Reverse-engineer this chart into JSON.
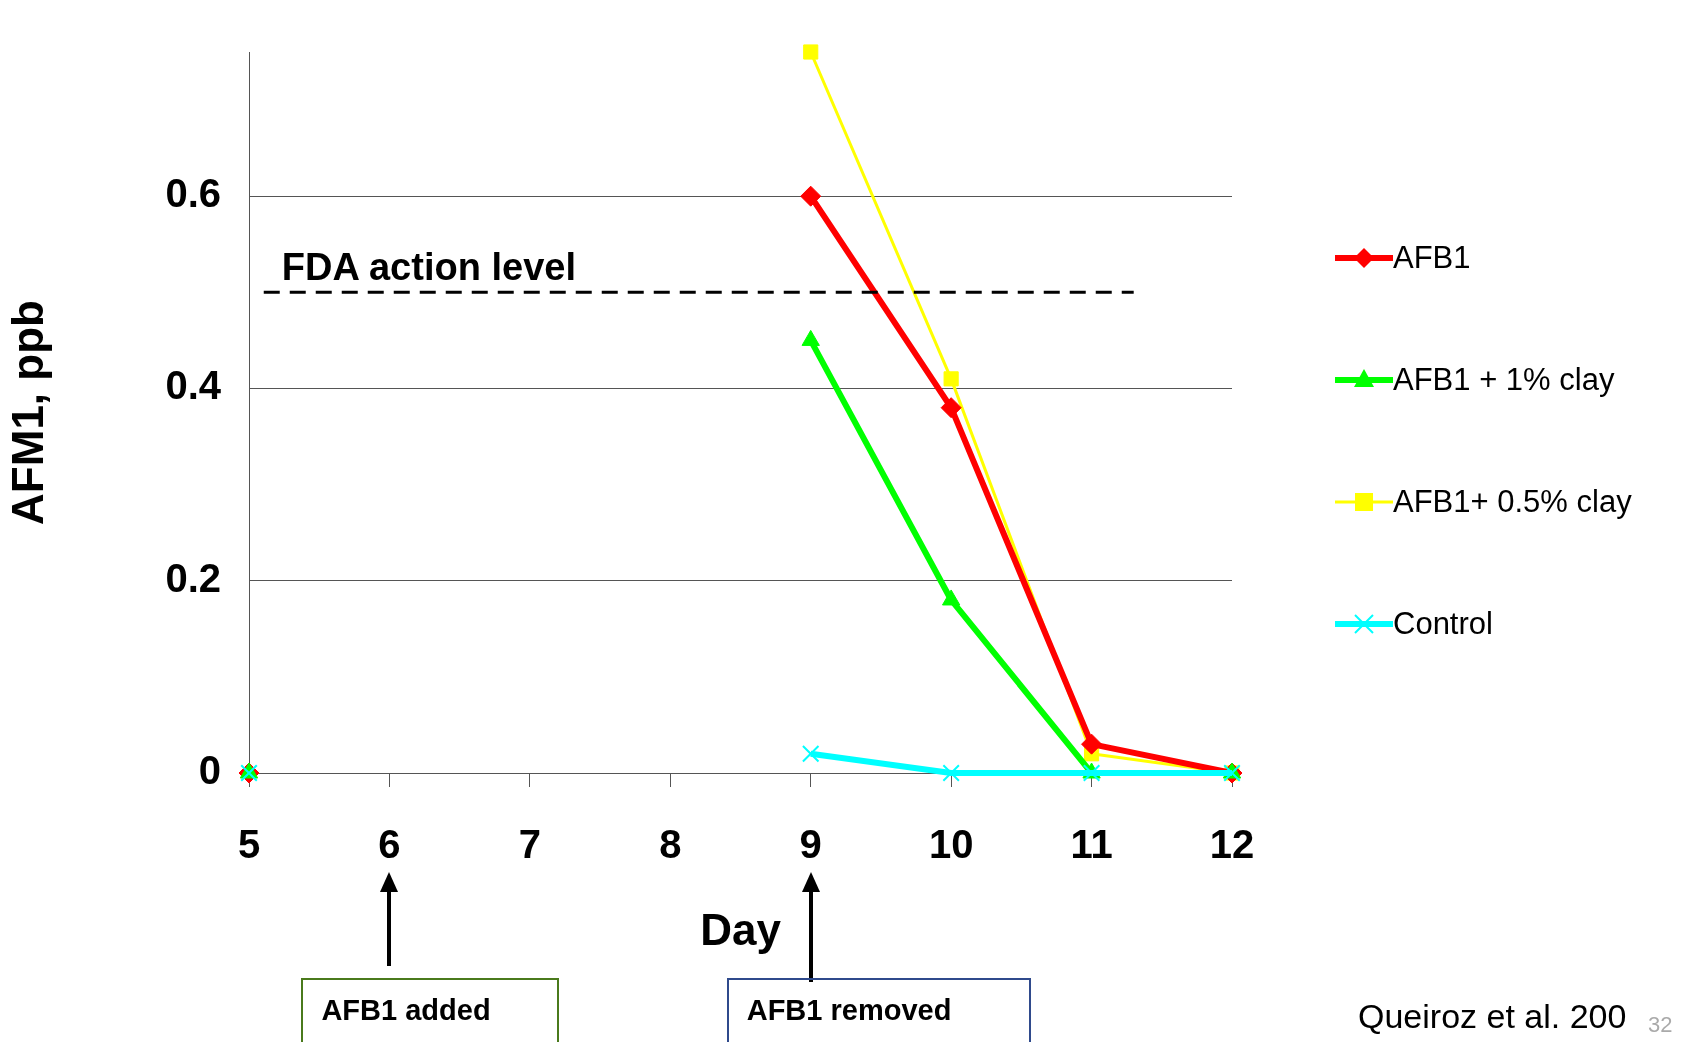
{
  "chart_data": {
    "type": "line",
    "xlabel": "Day",
    "ylabel": "AFM1, ppb",
    "x": [
      5,
      6,
      7,
      8,
      9,
      10,
      11,
      12
    ],
    "xlim": [
      5,
      12
    ],
    "xticks": [
      5,
      6,
      7,
      8,
      9,
      10,
      11,
      12
    ],
    "ylim": [
      0,
      0.75
    ],
    "yticks": [
      0,
      0.2,
      0.4,
      0.6
    ],
    "grid": "y",
    "legend": "right",
    "series": [
      {
        "name": "AFB1",
        "color": "#ff0000",
        "marker": "diamond",
        "values": [
          0,
          null,
          null,
          null,
          0.6,
          0.38,
          0.03,
          0
        ]
      },
      {
        "name": "AFB1 + 1% clay",
        "color": "#00ff00",
        "marker": "triangle",
        "values": [
          0,
          null,
          null,
          null,
          0.45,
          0.18,
          0,
          0
        ]
      },
      {
        "name": "AFB1+ 0.5% clay",
        "color": "#ffff00",
        "marker": "square",
        "values": [
          null,
          null,
          null,
          null,
          0.75,
          0.41,
          0.02,
          0
        ]
      },
      {
        "name": "Control",
        "color": "#00ffff",
        "marker": "cross",
        "values": [
          0,
          null,
          null,
          null,
          0.02,
          0,
          0,
          0
        ]
      }
    ],
    "ref_lines": [
      {
        "axis": "y",
        "value": 0.5,
        "label": "FDA action level",
        "color": "#000000",
        "line_style": "dashed"
      }
    ],
    "annotations": [
      "AFB1 added",
      "AFB1 removed",
      "Queiroz et al. 200",
      "32"
    ]
  }
}
